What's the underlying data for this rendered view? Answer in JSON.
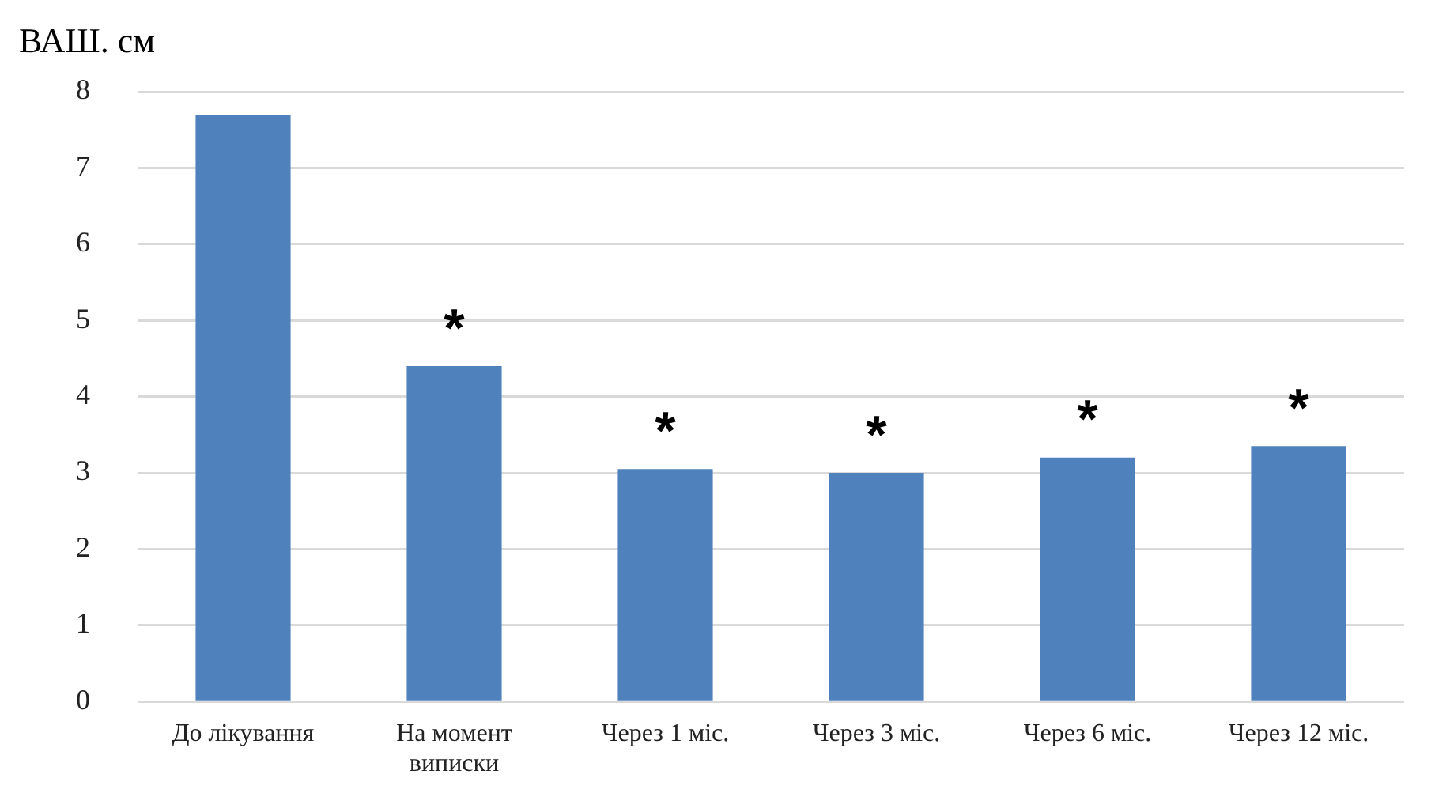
{
  "chart_data": {
    "type": "bar",
    "ylabel": "ВАШ. см",
    "categories": [
      "До лікування",
      "На момент виписки",
      "Через 1 міс.",
      "Через 3 міс.",
      "Через 6 міс.",
      "Через 12 міс."
    ],
    "values": [
      7.7,
      4.4,
      3.05,
      3.0,
      3.2,
      3.35
    ],
    "color": "#4f81bd",
    "ylim": [
      0,
      8
    ],
    "yticks": [
      0,
      1,
      2,
      3,
      4,
      5,
      6,
      7,
      8
    ],
    "grid": "y",
    "legend": false,
    "annotations": [
      {
        "text": "*",
        "x": "На момент виписки",
        "y": 4.4
      },
      {
        "text": "*",
        "x": "Через 1 міс.",
        "y": 3.05
      },
      {
        "text": "*",
        "x": "Через 3 міс.",
        "y": 3.0
      },
      {
        "text": "*",
        "x": "Через 6 міс.",
        "y": 3.2
      },
      {
        "text": "*",
        "x": "Через 12 міс.",
        "y": 3.35
      }
    ]
  }
}
